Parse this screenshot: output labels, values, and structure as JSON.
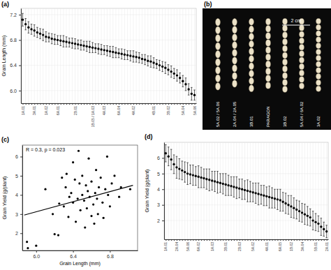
{
  "chart_data": [
    {
      "type": "dot",
      "title": "(a)",
      "ylabel": "Grain Length (mm)",
      "color": "#000000",
      "grid": true,
      "ylim": [
        5.8,
        7.3
      ],
      "yticks": [
        {
          "value": 6,
          "label": "6.0"
        },
        6.4,
        6.8,
        7.2
      ],
      "categories": [
        "1A.01",
        null,
        null,
        null,
        "3A.01",
        null,
        null,
        null,
        "1A.02",
        null,
        null,
        null,
        "6A.01",
        null,
        null,
        null,
        null,
        null,
        "2B.01",
        null,
        null,
        null,
        null,
        null,
        "1B.05 / 1A.03",
        null,
        null,
        null,
        "4A.03",
        null,
        null,
        null,
        null,
        "6A.04",
        null,
        null,
        null,
        null,
        "4A.02",
        null,
        null,
        null,
        null,
        null,
        null,
        "4B.01",
        null,
        null,
        null,
        null,
        "3B.02",
        null,
        null,
        null,
        null,
        "5A.04",
        null,
        null,
        null,
        "5A.06"
      ],
      "values": [
        7.12,
        7.05,
        7.0,
        6.97,
        6.95,
        6.92,
        6.9,
        6.88,
        6.85,
        6.84,
        6.82,
        6.81,
        6.8,
        6.79,
        6.78,
        6.77,
        6.76,
        6.75,
        6.74,
        6.73,
        6.72,
        6.71,
        6.7,
        6.69,
        6.68,
        6.67,
        6.66,
        6.65,
        6.64,
        6.63,
        6.62,
        6.61,
        6.6,
        6.59,
        6.58,
        6.57,
        6.56,
        6.55,
        6.54,
        6.53,
        6.52,
        6.5,
        6.49,
        6.47,
        6.46,
        6.44,
        6.42,
        6.4,
        6.38,
        6.36,
        6.33,
        6.3,
        6.27,
        6.24,
        6.2,
        6.15,
        6.1,
        6.02,
        5.95,
        5.93
      ],
      "errors": [
        0.1,
        0.09,
        0.09,
        0.08,
        0.09,
        0.08,
        0.08,
        0.09,
        0.08,
        0.07,
        0.08,
        0.08,
        0.07,
        0.08,
        0.09,
        0.08,
        0.07,
        0.08,
        0.08,
        0.07,
        0.08,
        0.07,
        0.08,
        0.09,
        0.08,
        0.07,
        0.08,
        0.08,
        0.07,
        0.08,
        0.08,
        0.09,
        0.08,
        0.07,
        0.08,
        0.08,
        0.07,
        0.08,
        0.09,
        0.08,
        0.08,
        0.07,
        0.08,
        0.08,
        0.09,
        0.08,
        0.07,
        0.08,
        0.08,
        0.09,
        0.08,
        0.09,
        0.08,
        0.09,
        0.08,
        0.09,
        0.1,
        0.09,
        0.1,
        0.08
      ]
    },
    {
      "type": "photo",
      "title": "(b)",
      "annotation": "2 cm",
      "categories": [
        "5A.02 / 5A.06",
        "2A.04 / 2A.05",
        "3B.01",
        "PARAGON",
        "3B.02",
        "5A.04 / 6A.02",
        "3A.02"
      ]
    },
    {
      "type": "scatter",
      "title": "(c)",
      "xlabel": "Grain Length (mm)",
      "ylabel": "Grain Yield (g/plant)",
      "annotation": "R = 0.3, p = 0.023",
      "xlim": [
        5.85,
        7.1
      ],
      "xticks": [
        {
          "value": 6,
          "label": "6.0"
        },
        6.4,
        6.8
      ],
      "ylim": [
        1.1,
        6.6
      ],
      "yticks": [
        2,
        3,
        4,
        5,
        6
      ],
      "series": [
        {
          "type": "scatter",
          "color": "#000000",
          "x": [
            5.9,
            5.91,
            6.0,
            6.1,
            6.18,
            6.2,
            6.24,
            6.25,
            6.28,
            6.3,
            6.32,
            6.33,
            6.35,
            6.36,
            6.38,
            6.4,
            6.4,
            6.42,
            6.43,
            6.45,
            6.46,
            6.47,
            6.48,
            6.5,
            6.5,
            6.52,
            6.53,
            6.54,
            6.55,
            6.56,
            6.57,
            6.58,
            6.6,
            6.6,
            6.62,
            6.63,
            6.64,
            6.65,
            6.66,
            6.67,
            6.68,
            6.7,
            6.72,
            6.73,
            6.75,
            6.77,
            6.78,
            6.8,
            6.82,
            6.85,
            6.9,
            6.92,
            7.02
          ],
          "values": [
            1.55,
            1.22,
            1.35,
            4.3,
            3.0,
            1.95,
            1.9,
            3.55,
            4.9,
            3.4,
            4.4,
            5.1,
            2.85,
            3.9,
            4.1,
            3.6,
            5.7,
            4.8,
            2.6,
            3.8,
            6.3,
            4.6,
            3.2,
            4.0,
            5.0,
            3.7,
            2.3,
            4.5,
            3.3,
            4.2,
            5.9,
            3.9,
            2.9,
            4.7,
            3.5,
            2.5,
            4.1,
            5.3,
            3.8,
            3.0,
            4.4,
            4.9,
            3.6,
            2.8,
            4.3,
            6.0,
            4.0,
            3.4,
            4.6,
            5.0,
            3.9,
            4.4,
            4.3
          ]
        },
        {
          "type": "line",
          "color": "#000000",
          "x": [
            5.87,
            7.05
          ],
          "values": [
            2.95,
            4.5
          ]
        }
      ]
    },
    {
      "type": "dot",
      "title": "(d)",
      "ylabel": "Grain Yield (g/plant)",
      "color": "#000000",
      "grid": true,
      "ylim": [
        0.8,
        7.0
      ],
      "yticks": [
        2,
        3,
        4,
        5,
        6
      ],
      "categories": [
        "1A.01",
        null,
        null,
        null,
        "2A.04",
        null,
        null,
        null,
        "5A.06",
        null,
        null,
        null,
        "6A.02",
        null,
        null,
        null,
        null,
        "1A.03",
        null,
        null,
        null,
        null,
        "3B.01",
        null,
        null,
        null,
        null,
        "2B.03",
        null,
        null,
        null,
        null,
        "5A.02",
        null,
        null,
        null,
        null,
        "4A.01",
        null,
        null,
        null,
        null,
        "6A.05",
        null,
        null,
        null,
        "1B.02",
        null,
        null,
        null,
        "3A.04",
        null,
        null,
        null,
        null,
        "5B.01",
        null,
        null,
        null,
        "2A.01"
      ],
      "values": [
        6.3,
        6.1,
        5.9,
        5.6,
        5.4,
        5.3,
        5.2,
        5.1,
        5.0,
        4.95,
        4.9,
        4.85,
        4.8,
        4.75,
        4.7,
        4.65,
        4.6,
        4.55,
        4.5,
        4.45,
        4.4,
        4.35,
        4.3,
        4.25,
        4.2,
        4.15,
        4.1,
        4.05,
        4.0,
        3.95,
        3.9,
        3.85,
        3.8,
        3.75,
        3.7,
        3.65,
        3.6,
        3.55,
        3.5,
        3.45,
        3.4,
        3.35,
        3.3,
        3.2,
        3.1,
        3.0,
        2.9,
        2.8,
        2.7,
        2.6,
        2.5,
        2.4,
        2.3,
        2.2,
        2.0,
        1.9,
        1.8,
        1.6,
        1.45,
        1.3
      ],
      "errors": [
        0.55,
        0.6,
        0.65,
        0.6,
        0.7,
        0.65,
        0.6,
        0.65,
        0.7,
        0.6,
        0.65,
        0.6,
        0.7,
        0.65,
        0.6,
        0.65,
        0.7,
        0.6,
        0.65,
        0.7,
        0.6,
        0.65,
        0.7,
        0.65,
        0.6,
        0.65,
        0.7,
        0.6,
        0.65,
        0.6,
        0.7,
        0.65,
        0.6,
        0.65,
        0.7,
        0.6,
        0.65,
        0.6,
        0.7,
        0.65,
        0.6,
        0.65,
        0.7,
        0.6,
        0.65,
        0.6,
        0.7,
        0.65,
        0.6,
        0.65,
        0.6,
        0.65,
        0.6,
        0.55,
        0.6,
        0.55,
        0.5,
        0.55,
        0.45,
        0.4
      ]
    }
  ]
}
